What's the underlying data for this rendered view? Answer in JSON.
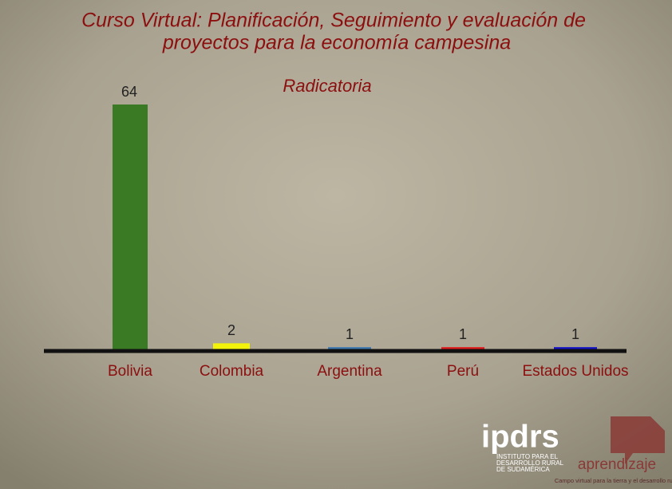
{
  "chart_data": {
    "type": "bar",
    "title": [
      "Curso Virtual: Planificación, Seguimiento y evaluación de",
      "proyectos para la economía campesina"
    ],
    "subtitle": "Radicatoria",
    "categories": [
      "Bolivia",
      "Colombia",
      "Argentina",
      "Perú",
      "Estados Unidos"
    ],
    "values": [
      64,
      2,
      1,
      1,
      1
    ],
    "colors": [
      "#3a7a24",
      "#f2f20a",
      "#3b76ad",
      "#e01a1a",
      "#1212c4"
    ],
    "ylim": [
      0,
      64
    ]
  },
  "logos": {
    "ipdrs": "ipdrs",
    "ipdrs_name": [
      "INSTITUTO PARA EL",
      "DESARROLLO RURAL",
      "DE SUDAMÉRICA"
    ],
    "aprendizaje": "aprendizaje",
    "tagline": "Campo virtual para la tierra y el desarrollo rural"
  }
}
